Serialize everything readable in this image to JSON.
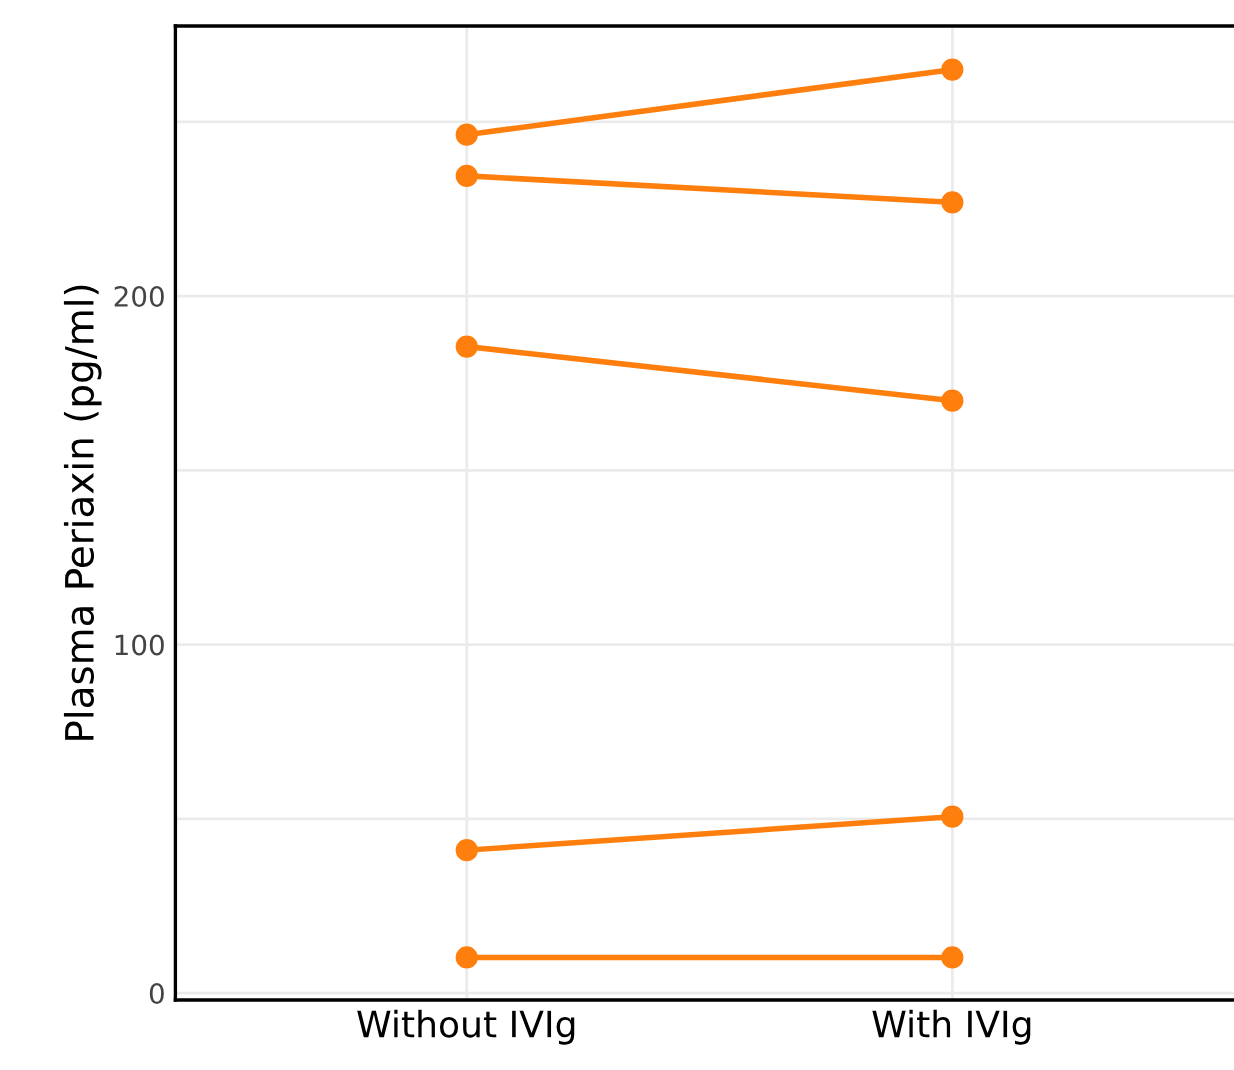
{
  "chart_data": {
    "type": "line",
    "ylabel": "Plasma Periaxin (pg/ml)",
    "categories": [
      "Without IVIg",
      "With IVIg"
    ],
    "series": [
      {
        "color": "#ff7f0e",
        "values": [
          246.3,
          265.0
        ]
      },
      {
        "color": "#ff7f0e",
        "values": [
          234.5,
          226.9
        ]
      },
      {
        "color": "#ff7f0e",
        "values": [
          185.5,
          170.0
        ]
      },
      {
        "color": "#ff7f0e",
        "values": [
          41.0,
          50.6
        ]
      },
      {
        "color": "#ff7f0e",
        "values": [
          10.2,
          10.2
        ]
      }
    ],
    "ylim": [
      -2,
      277.5
    ],
    "yticks": [
      0,
      {
        "value": 50,
        "label": null
      },
      100,
      {
        "value": 150,
        "label": null
      },
      200,
      {
        "value": 250,
        "label": null
      }
    ],
    "grid": true,
    "marker": "circle",
    "line_style": "solid",
    "legend": false
  }
}
